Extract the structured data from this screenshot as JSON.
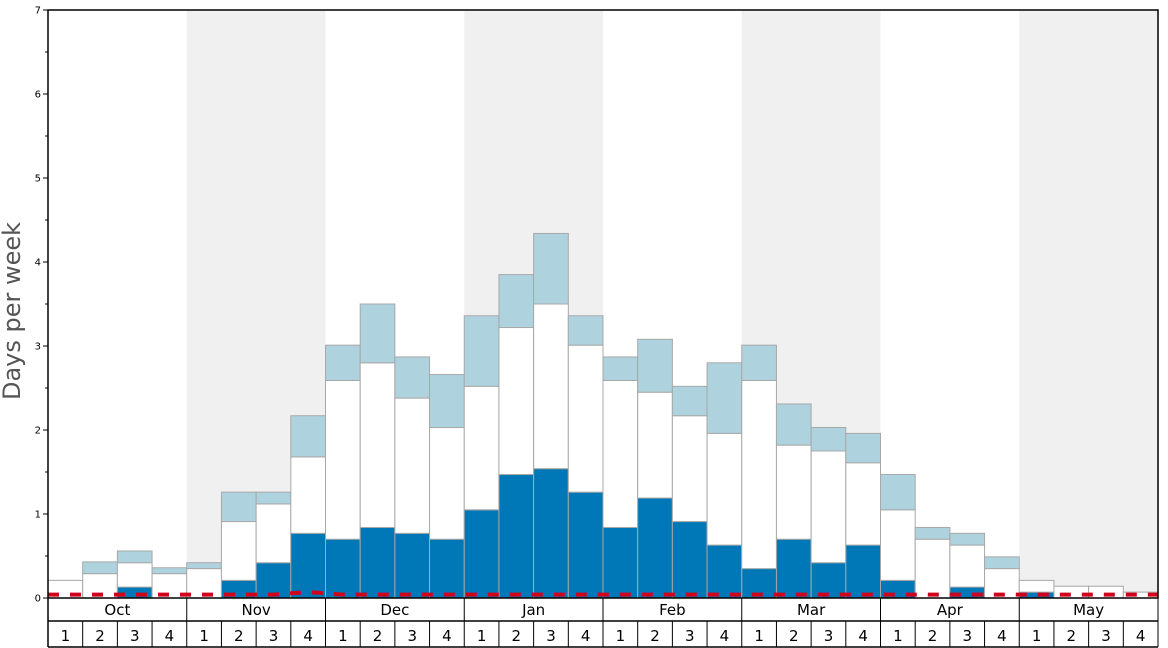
{
  "chart_data": {
    "type": "bar",
    "ylabel": "Days per week",
    "ylim": [
      0,
      7
    ],
    "yticks": [
      "0",
      "1",
      "2",
      "3",
      "4",
      "5",
      "6",
      "7"
    ],
    "months": [
      "Oct",
      "Nov",
      "Dec",
      "Jan",
      "Feb",
      "Mar",
      "Apr",
      "May"
    ],
    "week_labels": [
      "1",
      "2",
      "3",
      "4"
    ],
    "shaded_months": [
      "Nov",
      "Jan",
      "Mar",
      "May"
    ],
    "stacked": true,
    "series": [
      {
        "color": "#0077b6",
        "values": [
          0,
          0,
          0.13,
          0,
          0,
          0.21,
          0.42,
          0.77,
          0.7,
          0.84,
          0.77,
          0.7,
          1.05,
          1.47,
          1.54,
          1.26,
          0.84,
          1.19,
          0.91,
          0.63,
          0.35,
          0.7,
          0.42,
          0.63,
          0.21,
          0,
          0.13,
          0,
          0.07,
          0,
          0,
          0
        ]
      },
      {
        "color": "#ffffff",
        "values": [
          0.21,
          0.29,
          0.29,
          0.29,
          0.35,
          0.7,
          0.7,
          0.91,
          1.89,
          1.96,
          1.61,
          1.33,
          1.47,
          1.75,
          1.96,
          1.75,
          1.75,
          1.26,
          1.26,
          1.33,
          2.24,
          1.12,
          1.33,
          0.98,
          0.84,
          0.7,
          0.5,
          0.35,
          0.14,
          0.14,
          0.14,
          0.07
        ]
      },
      {
        "color": "#aed3df",
        "values": [
          0,
          0.14,
          0.14,
          0.07,
          0.07,
          0.35,
          0.14,
          0.49,
          0.42,
          0.7,
          0.49,
          0.63,
          0.84,
          0.63,
          0.84,
          0.35,
          0.28,
          0.63,
          0.35,
          0.84,
          0.42,
          0.49,
          0.28,
          0.35,
          0.42,
          0.14,
          0.14,
          0.14,
          0,
          0,
          0,
          0
        ]
      }
    ],
    "reference_line": {
      "color": "#d0021b",
      "style": "dashed",
      "values": [
        0.04,
        0.04,
        0.04,
        0.04,
        0.04,
        0.04,
        0.04,
        0.07,
        0.04,
        0.04,
        0.04,
        0.04,
        0.04,
        0.04,
        0.04,
        0.04,
        0.04,
        0.04,
        0.04,
        0.04,
        0.04,
        0.04,
        0.04,
        0.04,
        0.04,
        0.04,
        0.04,
        0.04,
        0.04,
        0.04,
        0.04,
        0.04
      ]
    },
    "grid": false,
    "legend": "none"
  }
}
